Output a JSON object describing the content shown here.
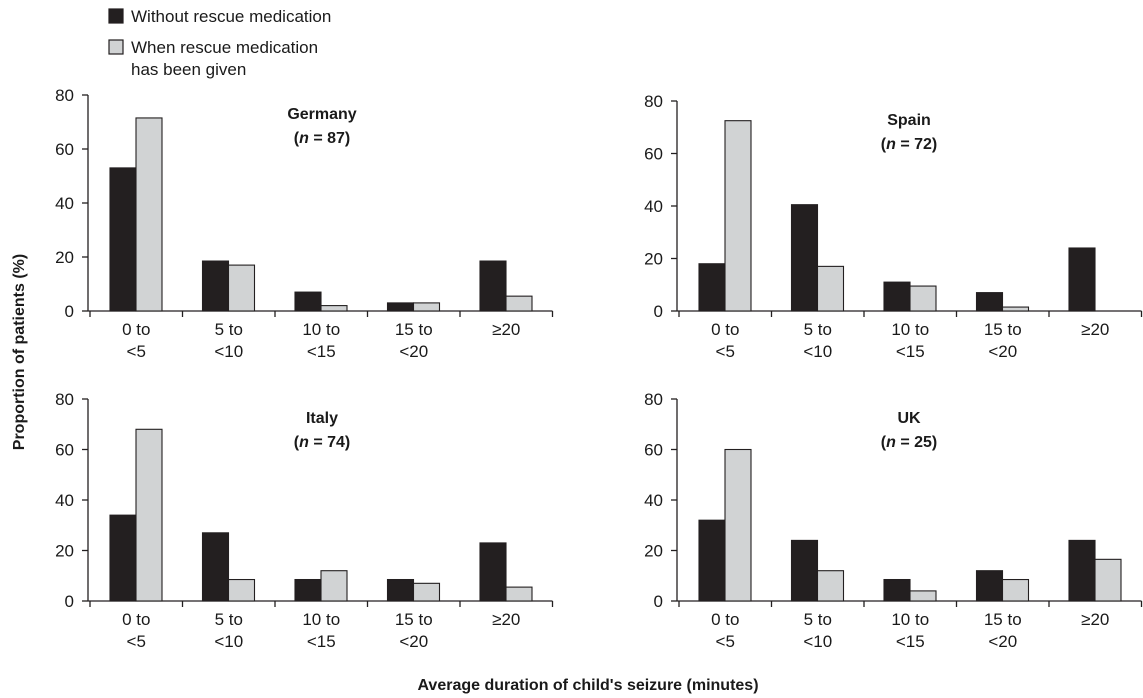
{
  "figure": {
    "ylabel": "Proportion of patients (%)",
    "xlabel": "Average duration of child's seizure (minutes)"
  },
  "legend": {
    "items": [
      {
        "label_lines": [
          "Without rescue medication"
        ],
        "color": "#231f20"
      },
      {
        "label_lines": [
          "When rescue medication",
          "has been given"
        ],
        "color": "#d1d3d4"
      }
    ]
  },
  "chart_data": [
    {
      "type": "bar",
      "title": "Germany",
      "n_label": "(n = 87)",
      "n_value": "87",
      "categories": [
        [
          "0 to",
          "<5"
        ],
        [
          "5 to",
          "<10"
        ],
        [
          "10 to",
          "<15"
        ],
        [
          "15 to",
          "<20"
        ],
        [
          "≥20"
        ]
      ],
      "ylim": [
        0,
        80
      ],
      "yticks": [
        "0",
        "20",
        "40",
        "60",
        "80"
      ],
      "series": [
        {
          "name": "Without rescue medication",
          "color": "#231f20",
          "values": [
            53,
            18.5,
            7,
            3,
            18.5
          ]
        },
        {
          "name": "When rescue medication has been given",
          "color": "#d1d3d4",
          "values": [
            71.5,
            17,
            2,
            3,
            5.5
          ]
        }
      ],
      "grid": false
    },
    {
      "type": "bar",
      "title": "Spain",
      "n_label": "(n = 72)",
      "n_value": "72",
      "categories": [
        [
          "0 to",
          "<5"
        ],
        [
          "5 to",
          "<10"
        ],
        [
          "10 to",
          "<15"
        ],
        [
          "15 to",
          "<20"
        ],
        [
          "≥20"
        ]
      ],
      "ylim": [
        0,
        80
      ],
      "yticks": [
        "0",
        "20",
        "40",
        "60",
        "80"
      ],
      "series": [
        {
          "name": "Without rescue medication",
          "color": "#231f20",
          "values": [
            18,
            40.5,
            11,
            7,
            24
          ]
        },
        {
          "name": "When rescue medication has been given",
          "color": "#d1d3d4",
          "values": [
            72.5,
            17,
            9.5,
            1.5,
            0
          ]
        }
      ],
      "grid": false
    },
    {
      "type": "bar",
      "title": "Italy",
      "n_label": "(n = 74)",
      "n_value": "74",
      "categories": [
        [
          "0 to",
          "<5"
        ],
        [
          "5 to",
          "<10"
        ],
        [
          "10 to",
          "<15"
        ],
        [
          "15 to",
          "<20"
        ],
        [
          "≥20"
        ]
      ],
      "ylim": [
        0,
        80
      ],
      "yticks": [
        "0",
        "20",
        "40",
        "60",
        "80"
      ],
      "series": [
        {
          "name": "Without rescue medication",
          "color": "#231f20",
          "values": [
            34,
            27,
            8.5,
            8.5,
            23
          ]
        },
        {
          "name": "When rescue medication has been given",
          "color": "#d1d3d4",
          "values": [
            68,
            8.5,
            12,
            7,
            5.5
          ]
        }
      ],
      "grid": false
    },
    {
      "type": "bar",
      "title": "UK",
      "n_label": "(n = 25)",
      "n_value": "25",
      "categories": [
        [
          "0 to",
          "<5"
        ],
        [
          "5 to",
          "<10"
        ],
        [
          "10 to",
          "<15"
        ],
        [
          "15 to",
          "<20"
        ],
        [
          "≥20"
        ]
      ],
      "ylim": [
        0,
        80
      ],
      "yticks": [
        "0",
        "20",
        "40",
        "60",
        "80"
      ],
      "series": [
        {
          "name": "Without rescue medication",
          "color": "#231f20",
          "values": [
            32,
            24,
            8.5,
            12,
            24
          ]
        },
        {
          "name": "When rescue medication has been given",
          "color": "#d1d3d4",
          "values": [
            60,
            12,
            4,
            8.5,
            16.5
          ]
        }
      ],
      "grid": false
    }
  ]
}
